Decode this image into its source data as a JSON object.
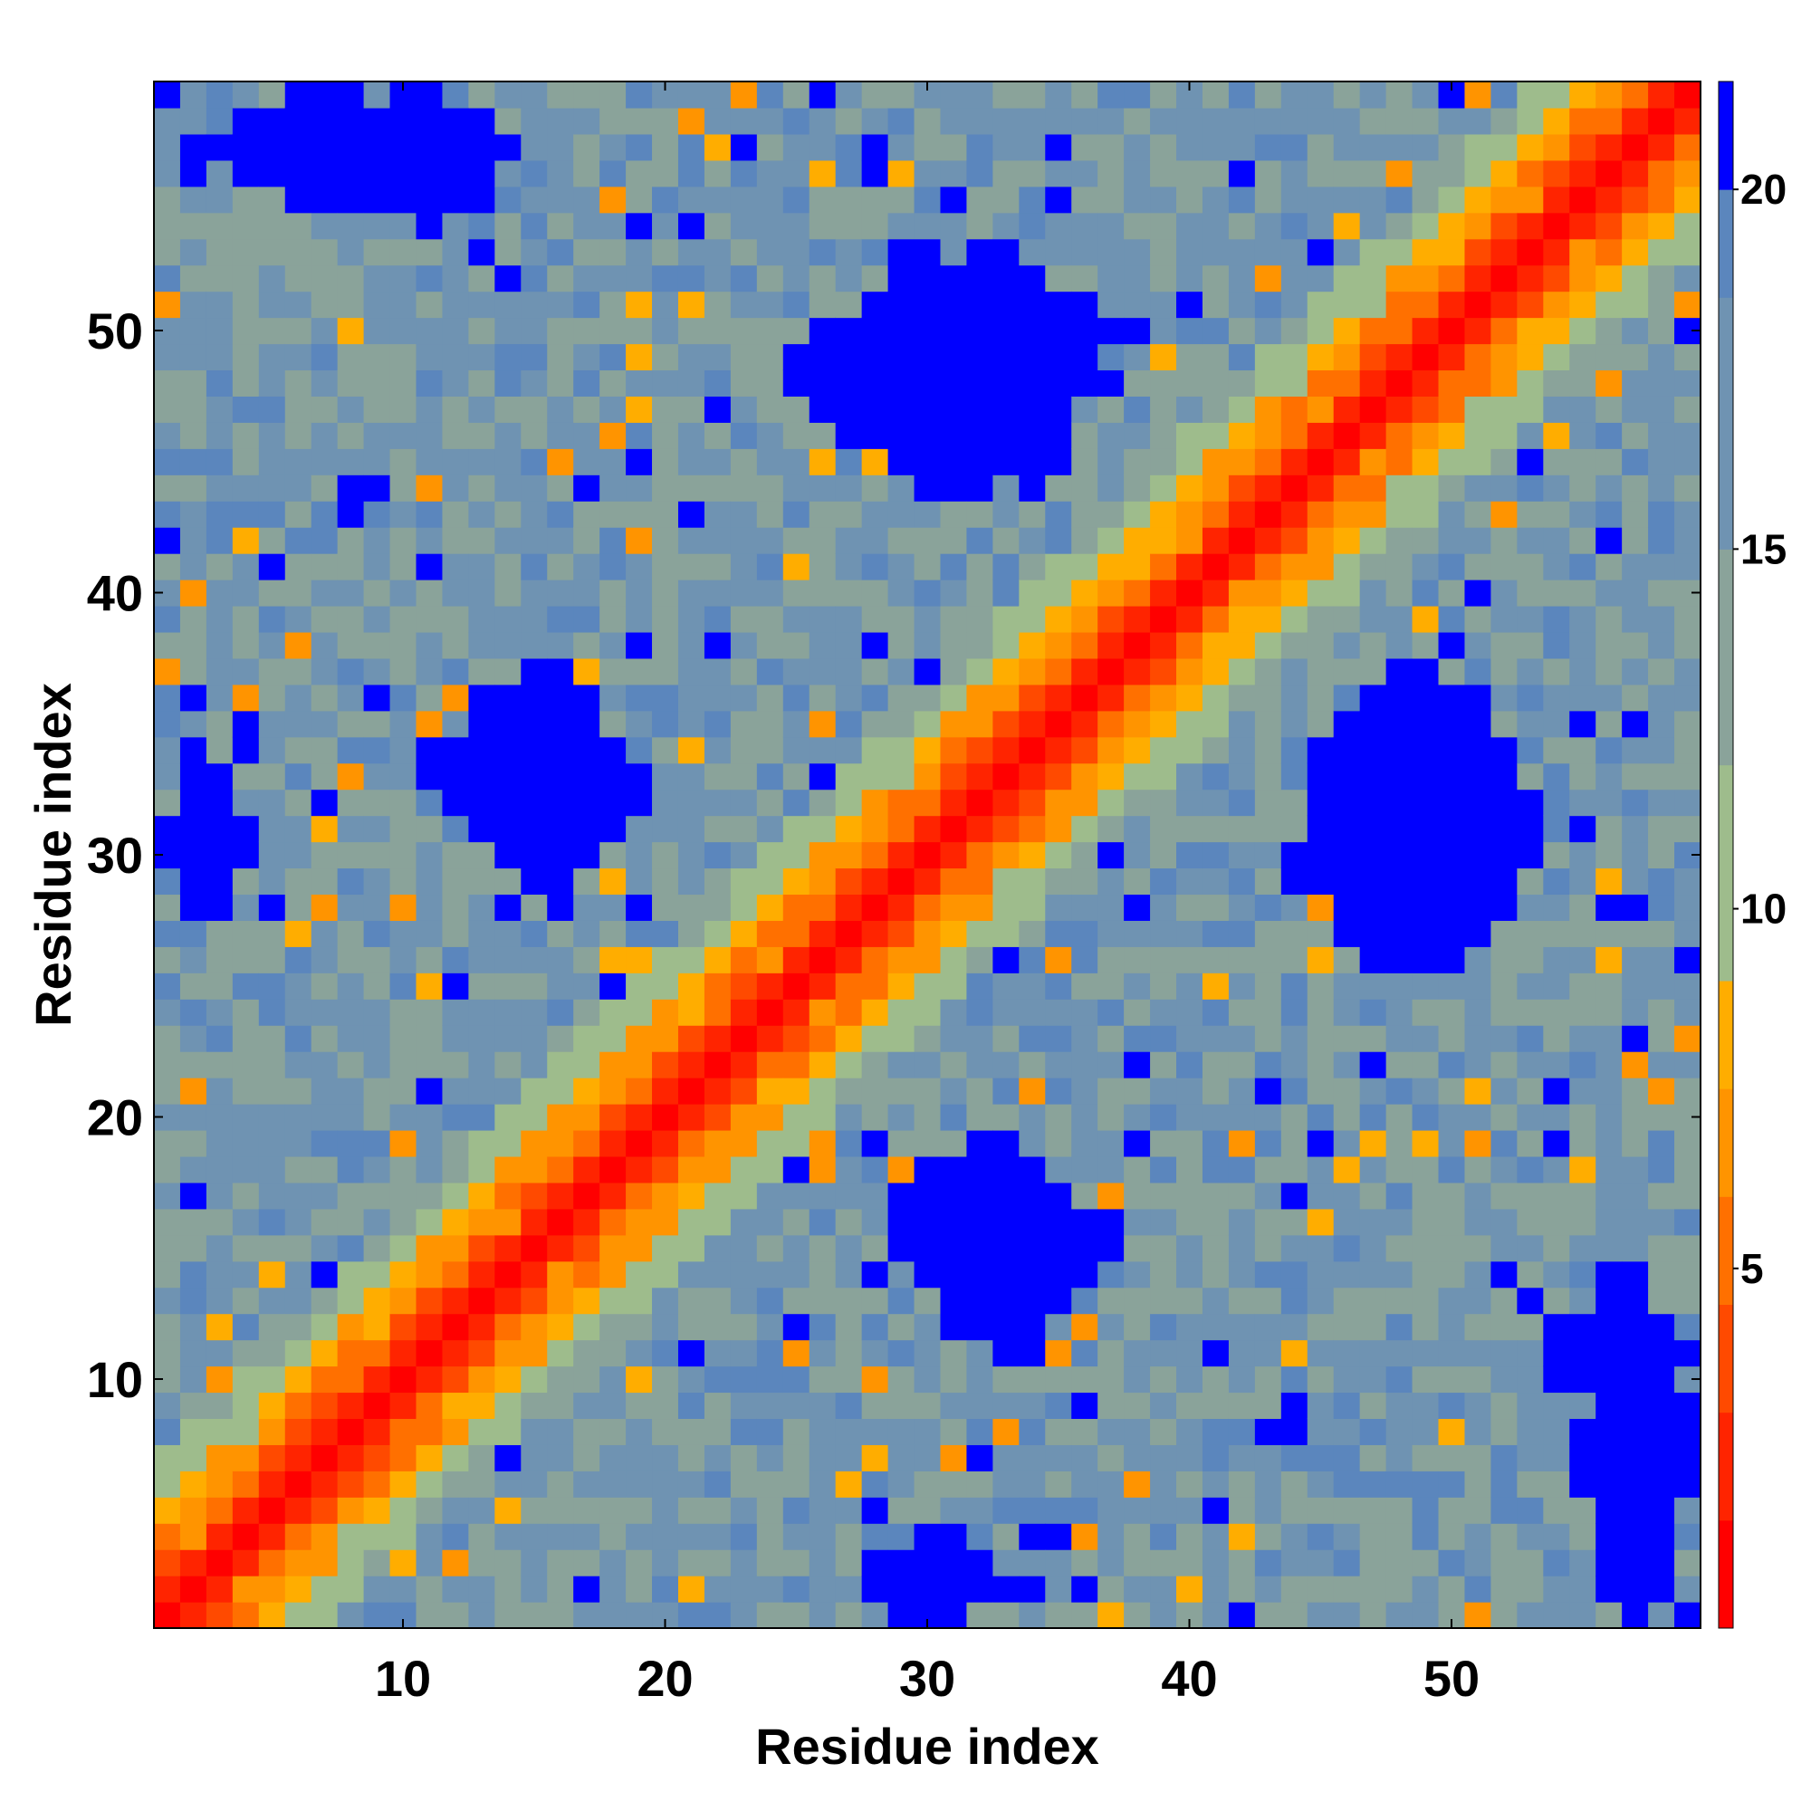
{
  "chart_data": {
    "type": "heatmap",
    "title": "",
    "xlabel": "Residue index",
    "ylabel": "Residue index",
    "n_residues": 59,
    "xlim": [
      0.5,
      59.5
    ],
    "ylim": [
      0.5,
      59.5
    ],
    "x_ticks": [
      10,
      20,
      30,
      40,
      50
    ],
    "y_ticks": [
      10,
      20,
      30,
      40,
      50
    ],
    "colorbar": {
      "position": "right",
      "range": [
        0,
        21.5
      ],
      "ticks": [
        5,
        10,
        15,
        20
      ],
      "bands": [
        {
          "from": 0,
          "to": 1.5,
          "color": "#ff0000"
        },
        {
          "from": 1.5,
          "to": 3.0,
          "color": "#ff2400"
        },
        {
          "from": 3.0,
          "to": 4.5,
          "color": "#ff4a00"
        },
        {
          "from": 4.5,
          "to": 6.0,
          "color": "#ff7000"
        },
        {
          "from": 6.0,
          "to": 7.5,
          "color": "#ff9400"
        },
        {
          "from": 7.5,
          "to": 9.0,
          "color": "#ffad00"
        },
        {
          "from": 9.0,
          "to": 12.0,
          "color": "#9ebc8c"
        },
        {
          "from": 12.0,
          "to": 15.0,
          "color": "#8aa39a"
        },
        {
          "from": 15.0,
          "to": 18.5,
          "color": "#6f93b2"
        },
        {
          "from": 18.5,
          "to": 20.0,
          "color": "#5b86bd"
        },
        {
          "from": 20.0,
          "to": 21.5,
          "color": "#0000ff"
        }
      ]
    },
    "series": [
      {
        "values_description_none": ""
      }
    ],
    "structure": {
      "diagonal_band_distance_by_offset": [
        0,
        2.5,
        5.0,
        6.5,
        8.0,
        10.5,
        12.0
      ],
      "far_background_range": [
        12.0,
        19.5
      ],
      "blue_blocks": [
        {
          "x_range": [
            28,
            37
          ],
          "y_range": [
            44,
            53
          ],
          "value": 21
        },
        {
          "x_range": [
            12,
            19
          ],
          "y_range": [
            28,
            36
          ],
          "value": 21
        },
        {
          "x_range": [
            44,
            53
          ],
          "y_range": [
            25,
            35
          ],
          "value": 21
        },
        {
          "x_range": [
            29,
            37
          ],
          "y_range": [
            11,
            19
          ],
          "value": 21
        },
        {
          "x_range": [
            1,
            14
          ],
          "y_range": [
            55,
            59
          ],
          "value": 21
        },
        {
          "x_range": [
            1,
            4
          ],
          "y_range": [
            28,
            33
          ],
          "value": 21
        },
        {
          "x_range": [
            54,
            59
          ],
          "y_range": [
            8,
            14
          ],
          "value": 21
        },
        {
          "x_range": [
            28,
            33
          ],
          "y_range": [
            1,
            3
          ],
          "value": 21
        }
      ]
    }
  }
}
